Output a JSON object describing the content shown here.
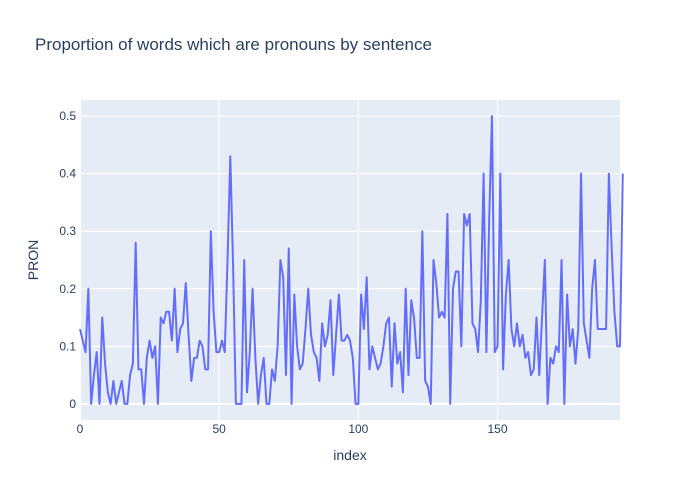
{
  "chart_data": {
    "type": "line",
    "title": "Proportion of words which are pronouns by sentence",
    "xlabel": "index",
    "ylabel": "PRON",
    "xlim": [
      0,
      194
    ],
    "ylim": [
      -0.028,
      0.528
    ],
    "xticks": [
      0,
      50,
      100,
      150
    ],
    "yticks": [
      0,
      0.1,
      0.2,
      0.3,
      0.4,
      0.5
    ],
    "grid": true,
    "line_color": "#636efa",
    "plot_bg": "#e5ecf6",
    "series": [
      {
        "values": [
          0.13,
          0.11,
          0.09,
          0.2,
          0,
          0.05,
          0.09,
          0,
          0.15,
          0.07,
          0.02,
          0,
          0.04,
          0,
          0.02,
          0.04,
          0,
          0,
          0.05,
          0.07,
          0.28,
          0.06,
          0.06,
          0,
          0.08,
          0.11,
          0.08,
          0.1,
          0,
          0.15,
          0.14,
          0.16,
          0.16,
          0.11,
          0.2,
          0.09,
          0.13,
          0.14,
          0.21,
          0.12,
          0.04,
          0.08,
          0.08,
          0.11,
          0.1,
          0.06,
          0.06,
          0.3,
          0.16,
          0.09,
          0.09,
          0.11,
          0.09,
          0.25,
          0.43,
          0.24,
          0,
          0,
          0,
          0.25,
          0.02,
          0.09,
          0.2,
          0.08,
          0,
          0.05,
          0.08,
          0,
          0,
          0.06,
          0.04,
          0.1,
          0.25,
          0.22,
          0.05,
          0.27,
          0,
          0.19,
          0.1,
          0.06,
          0.07,
          0.13,
          0.2,
          0.12,
          0.09,
          0.08,
          0.04,
          0.14,
          0.1,
          0.12,
          0.18,
          0.05,
          0.12,
          0.19,
          0.11,
          0.11,
          0.12,
          0.11,
          0.08,
          0,
          0,
          0.19,
          0.13,
          0.22,
          0.06,
          0.1,
          0.08,
          0.06,
          0.07,
          0.1,
          0.14,
          0.15,
          0.03,
          0.14,
          0.07,
          0.09,
          0.02,
          0.2,
          0.05,
          0.18,
          0.15,
          0.08,
          0.08,
          0.3,
          0.04,
          0.03,
          0,
          0.25,
          0.21,
          0.15,
          0.16,
          0.15,
          0.33,
          0,
          0.2,
          0.23,
          0.23,
          0.1,
          0.33,
          0.31,
          0.33,
          0.14,
          0.13,
          0.09,
          0.18,
          0.4,
          0.09,
          0.32,
          0.5,
          0.09,
          0.1,
          0.4,
          0.06,
          0.19,
          0.25,
          0.13,
          0.1,
          0.14,
          0.1,
          0.12,
          0.08,
          0.09,
          0.05,
          0.06,
          0.15,
          0.05,
          0.15,
          0.25,
          0,
          0.08,
          0.07,
          0.1,
          0.09,
          0.25,
          0,
          0.19,
          0.1,
          0.13,
          0.07,
          0.13,
          0.4,
          0.14,
          0.11,
          0.08,
          0.2,
          0.25,
          0.13,
          0.13,
          0.13,
          0.13,
          0.4,
          0.27,
          0.16,
          0.1,
          0.1,
          0.4
        ]
      }
    ]
  }
}
